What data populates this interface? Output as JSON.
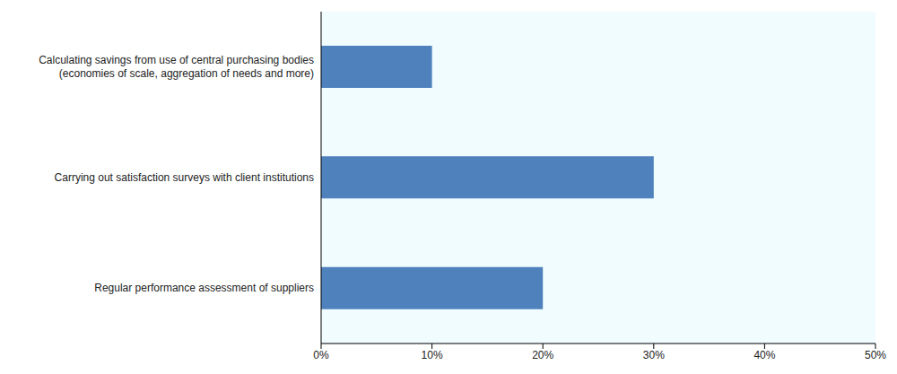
{
  "chart_data": {
    "type": "bar",
    "orientation": "horizontal",
    "categories": [
      "Calculating savings from use of central purchasing bodies (economies of scale, aggregation of needs and more)",
      "Carrying out satisfaction surveys with client institutions",
      "Regular performance assessment of suppliers"
    ],
    "values": [
      10,
      30,
      20
    ],
    "color": "#4f81bd",
    "xlim": [
      0,
      50
    ],
    "xticks": [
      {
        "value": 0,
        "label": "0%"
      },
      {
        "value": 10,
        "label": "10%"
      },
      {
        "value": 20,
        "label": "20%"
      },
      {
        "value": 30,
        "label": "30%"
      },
      {
        "value": 40,
        "label": "40%"
      },
      {
        "value": 50,
        "label": "50%"
      }
    ],
    "grid": false
  }
}
